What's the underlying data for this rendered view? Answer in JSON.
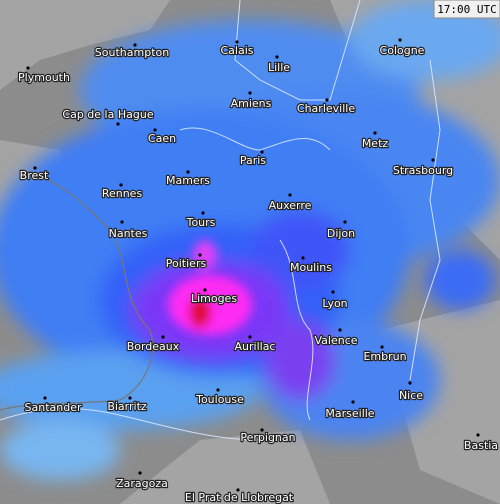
{
  "timestamp": "17:00 UTC",
  "cities": [
    {
      "name": "Southampton"
    },
    {
      "name": "Plymouth"
    },
    {
      "name": "Calais"
    },
    {
      "name": "Lille"
    },
    {
      "name": "Cologne"
    },
    {
      "name": "Amiens"
    },
    {
      "name": "Charleville"
    },
    {
      "name": "Cap de la Hague"
    },
    {
      "name": "Caen"
    },
    {
      "name": "Metz"
    },
    {
      "name": "Paris"
    },
    {
      "name": "Brest"
    },
    {
      "name": "Strasbourg"
    },
    {
      "name": "Mamers"
    },
    {
      "name": "Rennes"
    },
    {
      "name": "Auxerre"
    },
    {
      "name": "Tours"
    },
    {
      "name": "Nantes"
    },
    {
      "name": "Dijon"
    },
    {
      "name": "Poitiers"
    },
    {
      "name": "Moulins"
    },
    {
      "name": "Limoges"
    },
    {
      "name": "Lyon"
    },
    {
      "name": "Valence"
    },
    {
      "name": "Aurillac"
    },
    {
      "name": "Bordeaux"
    },
    {
      "name": "Embrun"
    },
    {
      "name": "Toulouse"
    },
    {
      "name": "Nice"
    },
    {
      "name": "Santander"
    },
    {
      "name": "Biarritz"
    },
    {
      "name": "Marseille"
    },
    {
      "name": "Perpignan"
    },
    {
      "name": "Bastia"
    },
    {
      "name": "Zaragoza"
    },
    {
      "name": "El Prat de Llobregat"
    }
  ]
}
